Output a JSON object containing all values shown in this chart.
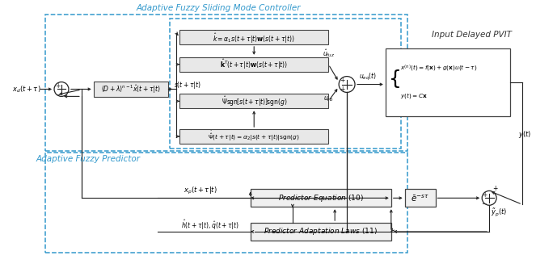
{
  "bg_color": "#ffffff",
  "box_bg": "#e8e8e8",
  "box_edge": "#444444",
  "arrow_color": "#222222",
  "dash_color": "#3399cc",
  "afsmc_label": "Adaptive Fuzzy Sliding Mode Controller",
  "afp_label": "Adaptive Fuzzy Predictor",
  "pvit_label": "Input Delayed PVIT"
}
